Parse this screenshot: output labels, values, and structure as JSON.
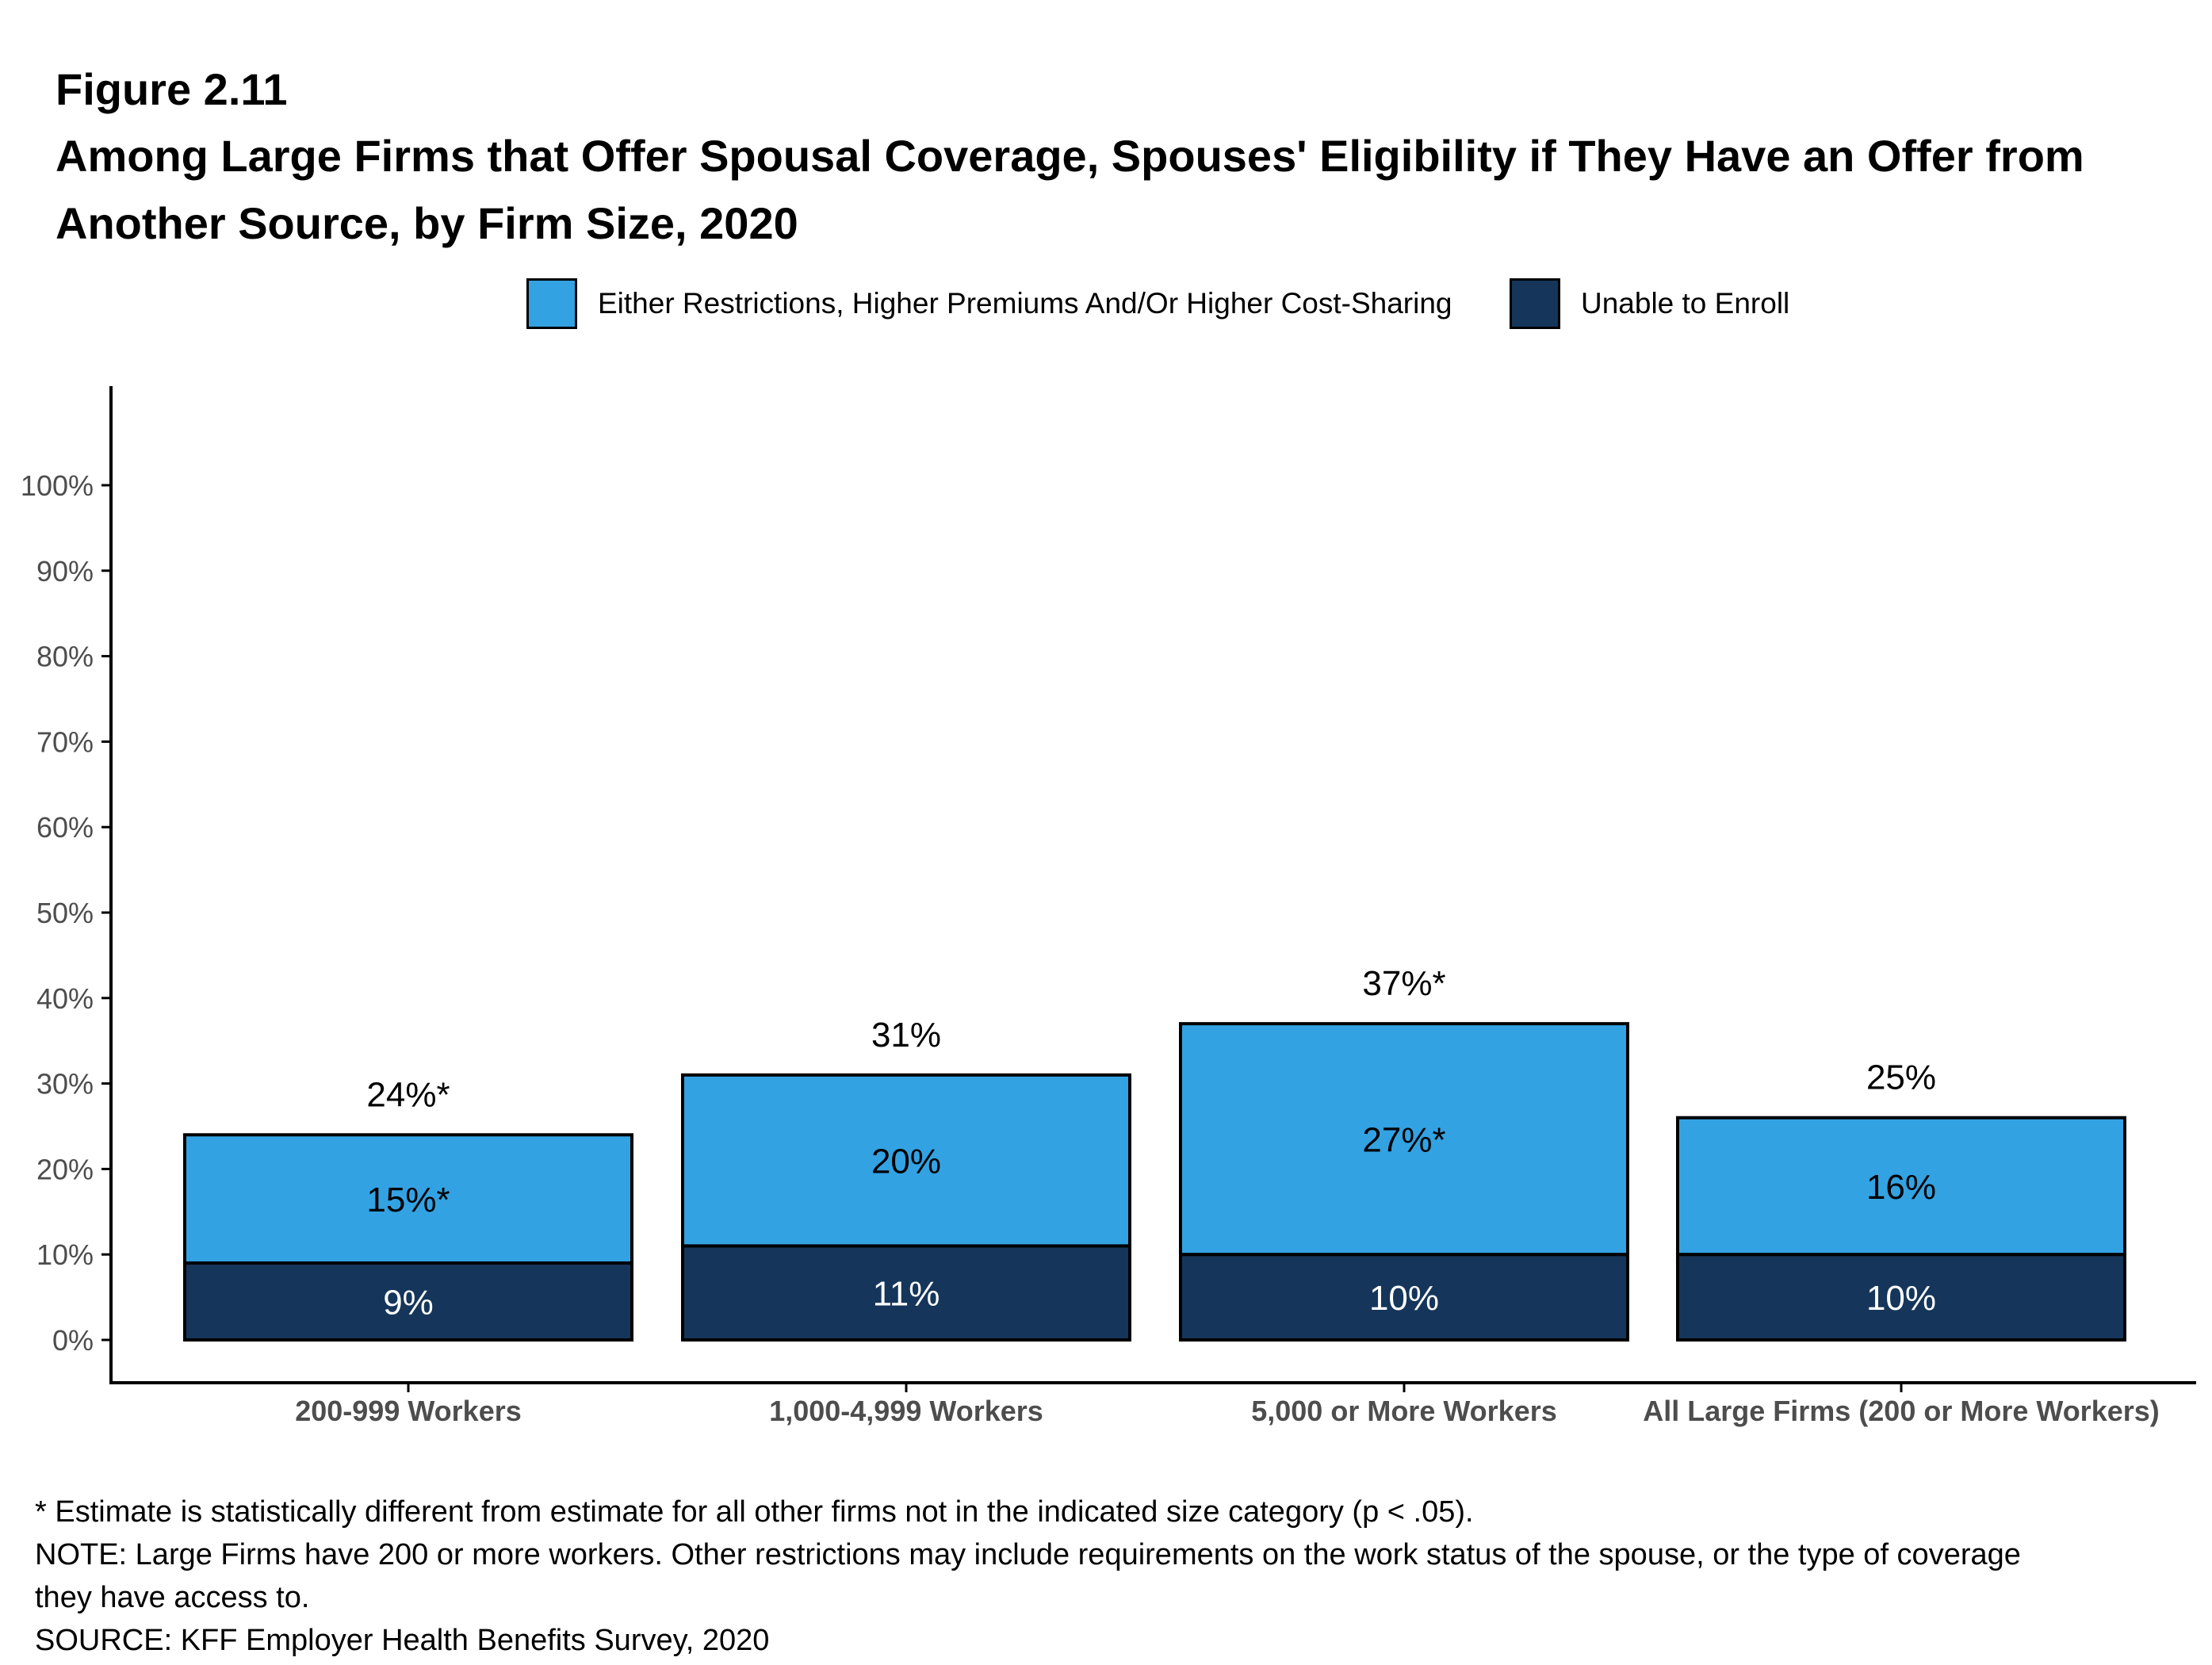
{
  "figure_label": "Figure 2.11",
  "figure_title": "Among Large Firms that Offer Spousal Coverage, Spouses' Eligibility if They Have an Offer from Another Source, by Firm Size, 2020",
  "colors": {
    "restrictions": "#33A2E2",
    "unable": "#15365A",
    "axis": "#000000",
    "tick_text": "#4D4D4D"
  },
  "chart_data": {
    "type": "bar",
    "stacked": true,
    "categories": [
      "200-999 Workers",
      "1,000-4,999 Workers",
      "5,000 or More Workers",
      "All Large Firms (200 or More Workers)"
    ],
    "series": [
      {
        "name": "Unable to Enroll",
        "values": [
          9,
          11,
          10,
          10
        ],
        "labels": [
          "9%",
          "11%",
          "10%",
          "10%"
        ]
      },
      {
        "name": "Either Restrictions, Higher Premiums And/Or Higher Cost-Sharing",
        "values": [
          15,
          20,
          27,
          16
        ],
        "labels": [
          "15%*",
          "20%",
          "27%*",
          "16%"
        ]
      }
    ],
    "totals": [
      24,
      31,
      37,
      25
    ],
    "total_labels": [
      "24%*",
      "31%",
      "37%*",
      "25%"
    ],
    "ylim": [
      0,
      100
    ],
    "yticks": [
      "0%",
      "10%",
      "20%",
      "30%",
      "40%",
      "50%",
      "60%",
      "70%",
      "80%",
      "90%",
      "100%"
    ],
    "legend_position": "top-center",
    "grid": false
  },
  "footnotes": [
    "* Estimate is statistically different from estimate for all other firms not in the indicated size category (p < .05).",
    "NOTE: Large Firms have 200 or more workers.  Other restrictions may include requirements on the work status of the spouse, or the type of coverage",
    "they have access to.",
    "SOURCE: KFF Employer Health Benefits Survey, 2020"
  ]
}
